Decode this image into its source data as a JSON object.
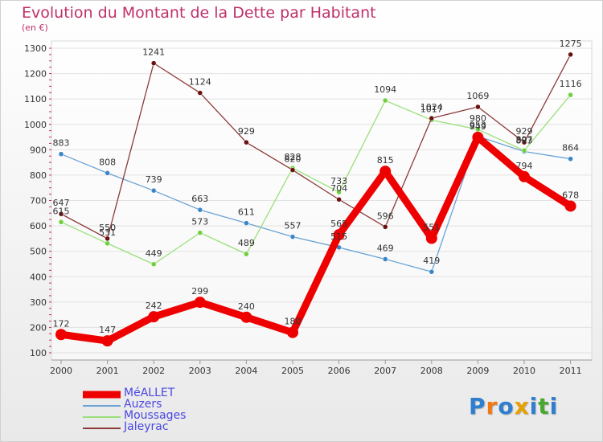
{
  "title": "Evolution du Montant de la Dette par Habitant",
  "subtitle": "(en €)",
  "logo": {
    "text": "Proxiti",
    "letters": [
      "P",
      "r",
      "o",
      "x",
      "i",
      "t",
      "i"
    ],
    "colors": [
      "#2e7fd0",
      "#f07a12",
      "#2e7fd0",
      "#e8a000",
      "#2e7fd0",
      "#48a832",
      "#2e7fd0"
    ]
  },
  "legend_label_color": "#4a48e0",
  "chart_data": {
    "type": "line",
    "x": [
      "2000",
      "2001",
      "2002",
      "2003",
      "2004",
      "2005",
      "2006",
      "2007",
      "2008",
      "2009",
      "2010",
      "2011"
    ],
    "yticks": [
      100,
      200,
      300,
      400,
      500,
      600,
      700,
      800,
      900,
      1000,
      1100,
      1200,
      1300
    ],
    "ylim": [
      100,
      1300
    ],
    "grid": "horizontal",
    "legend": "bottom-left",
    "series": [
      {
        "name": "MéALLET",
        "color": "#ee0000",
        "emphasis": true,
        "values": [
          172,
          147,
          242,
          299,
          240,
          180,
          565,
          815,
          551,
          949,
          794,
          678
        ],
        "labels": [
          "172",
          "147",
          "242",
          "299",
          "240",
          "180",
          "565",
          "815",
          "551",
          "949",
          "794",
          "678"
        ]
      },
      {
        "name": "Auzers",
        "color": "#6aa3d4",
        "point_color": "#3a86c8",
        "values": [
          883,
          808,
          739,
          663,
          611,
          557,
          515,
          469,
          419,
          953,
          893,
          864
        ],
        "labels": [
          "883",
          "808",
          "739",
          "663",
          "611",
          "557",
          "515",
          "469",
          "419",
          "953",
          "893",
          "864"
        ]
      },
      {
        "name": "Moussages",
        "color": "#9ae07a",
        "point_color": "#6fcf40",
        "values": [
          615,
          531,
          449,
          573,
          489,
          828,
          733,
          1094,
          1017,
          980,
          897,
          1116
        ],
        "labels": [
          "615",
          "531",
          "449",
          "573",
          "489",
          "828",
          "733",
          "1094",
          "1017",
          "980",
          "897",
          "1116"
        ]
      },
      {
        "name": "Jaleyrac",
        "color": "#8c3a3a",
        "point_color": "#6a1010",
        "values": [
          647,
          550,
          1241,
          1124,
          929,
          820,
          704,
          596,
          1024,
          1069,
          929,
          1275
        ],
        "labels": [
          "647",
          "550",
          "1241",
          "1124",
          "929",
          "820",
          "704",
          "596",
          "1024",
          "1069",
          "929",
          "1275"
        ]
      }
    ]
  }
}
